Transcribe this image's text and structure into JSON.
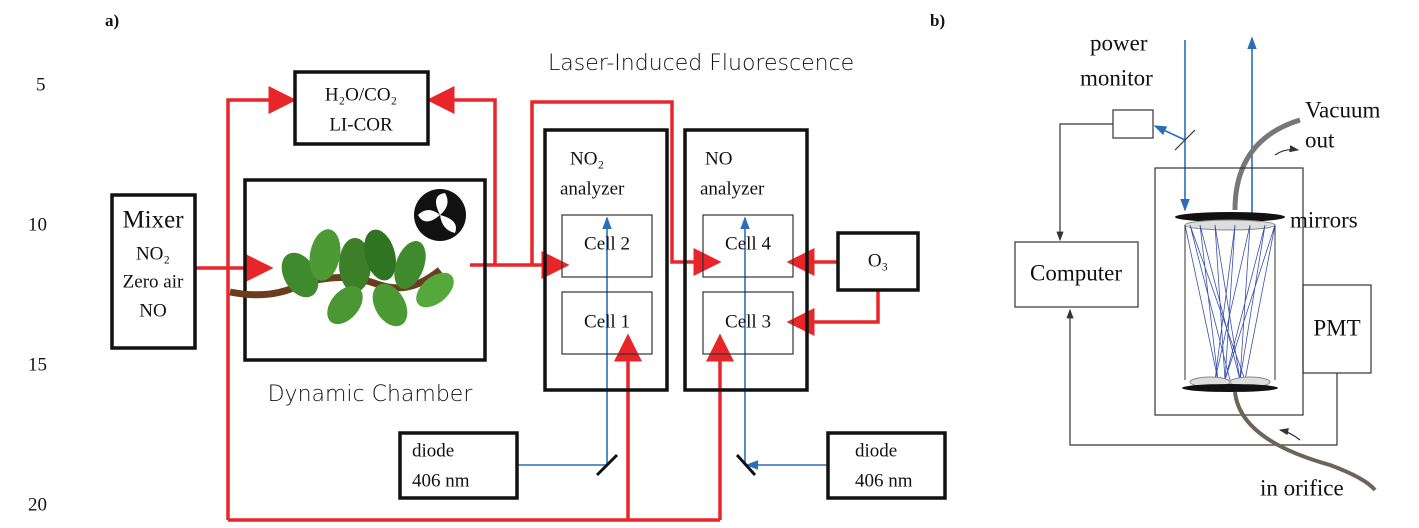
{
  "panel_labels": [
    "a)",
    "b)"
  ],
  "line_numbers": [
    "5",
    "10",
    "15",
    "20"
  ],
  "panel_a": {
    "title": "Laser-Induced Fluorescence",
    "licor": [
      "H₂O/CO₂",
      "LI-COR"
    ],
    "mixer": {
      "title": "Mixer",
      "inputs": [
        "NO₂",
        "Zero air",
        "NO"
      ]
    },
    "chamber": "Dynamic Chamber",
    "no2_analyzer": {
      "label": [
        "NO₂",
        "analyzer"
      ],
      "cells": [
        "Cell 2",
        "Cell 1"
      ]
    },
    "no_analyzer": {
      "label": [
        "NO",
        "analyzer"
      ],
      "cells": [
        "Cell 4",
        "Cell 3"
      ]
    },
    "ozone": "O₃",
    "diode_left": [
      "diode",
      "406 nm"
    ],
    "diode_right": [
      "diode",
      "406 nm"
    ]
  },
  "panel_b": {
    "power_monitor": [
      "power",
      "monitor"
    ],
    "vacuum": [
      "Vacuum",
      "out"
    ],
    "mirrors": "mirrors",
    "computer": "Computer",
    "pmt": "PMT",
    "inlet": "in orifice"
  }
}
